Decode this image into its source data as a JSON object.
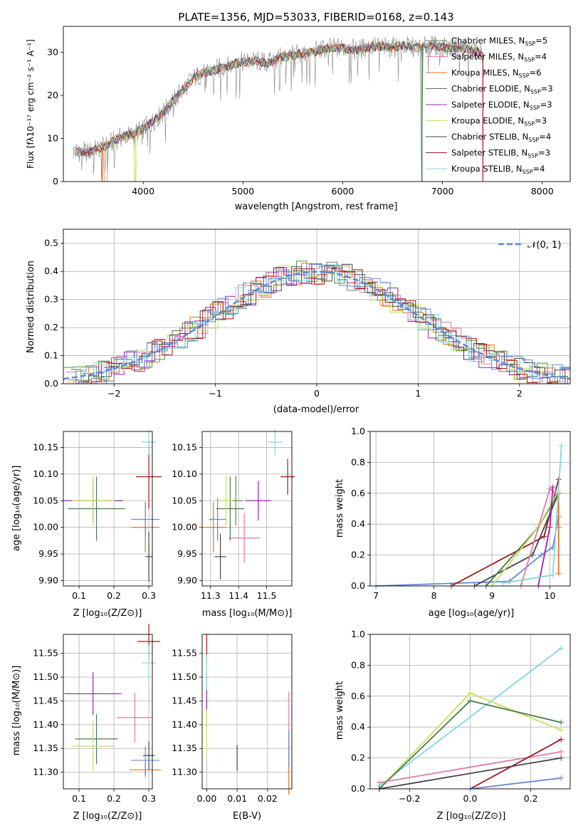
{
  "spectrum": {
    "title": "PLATE=1356, MJD=53033, FIBERID=0168, z=0.143",
    "xlabel": "wavelength [Angstrom, rest frame]",
    "ylabel": "Flux [fλ10⁻¹⁷ erg cm⁻² s⁻¹ A⁻¹]",
    "xticks": [
      "4000",
      "5000",
      "6000",
      "7000",
      "8000"
    ],
    "yticks": [
      "0",
      "10",
      "20",
      "30"
    ],
    "legend": [
      "Chabrier MILES, N_SSP=5",
      "Salpeter MILES, N_SSP=4",
      "Kroupa MILES, N_SSP=6",
      "Chabrier ELODIE, N_SSP=3",
      "Salpeter ELODIE, N_SSP=3",
      "Kroupa ELODIE, N_SSP=3",
      "Chabrier STELIB, N_SSP=4",
      "Salpeter STELIB, N_SSP=3",
      "Kroupa STELIB, N_SSP=4"
    ]
  },
  "residuals": {
    "xlabel": "(data-model)/error",
    "ylabel": "Normed distribution",
    "xticks": [
      "−2",
      "−1",
      "0",
      "1",
      "2"
    ],
    "yticks": [
      "0.0",
      "0.1",
      "0.2",
      "0.3",
      "0.4",
      "0.5"
    ],
    "legend": "𝒩(0, 1)"
  },
  "panels": {
    "age_vs_z": {
      "xlabel": "Z [log₁₀(Z/Z⊙)]",
      "ylabel": "age  [log₁₀(age/yr)]",
      "xticks": [
        "0.1",
        "0.2",
        "0.3"
      ],
      "yticks": [
        "9.90",
        "9.95",
        "10.00",
        "10.05",
        "10.10",
        "10.15"
      ]
    },
    "age_vs_mass": {
      "xlabel": "mass [log₁₀(M/M⊙)]",
      "xticks": [
        "11.3",
        "11.4",
        "11.5"
      ],
      "yticks": [
        "9.90",
        "9.95",
        "10.00",
        "10.05",
        "10.10",
        "10.15"
      ]
    },
    "mw_vs_age": {
      "xlabel": "age  [log₁₀(age/yr)]",
      "ylabel": "mass weight",
      "xticks": [
        "7",
        "8",
        "9",
        "10"
      ],
      "yticks": [
        "0.0",
        "0.2",
        "0.4",
        "0.6",
        "0.8",
        "1.0"
      ]
    },
    "mass_vs_z": {
      "xlabel": "Z [log₁₀(Z/Z⊙)]",
      "ylabel": "mass [log₁₀(M/M⊙)]",
      "xticks": [
        "0.1",
        "0.2",
        "0.3"
      ],
      "yticks": [
        "11.30",
        "11.35",
        "11.40",
        "11.45",
        "11.50",
        "11.55"
      ]
    },
    "mass_vs_ebv": {
      "xlabel": "E(B-V)",
      "xticks": [
        "0.00",
        "0.01",
        "0.02"
      ],
      "yticks": [
        "11.30",
        "11.35",
        "11.40",
        "11.45",
        "11.50",
        "11.55"
      ]
    },
    "mw_vs_z": {
      "xlabel": "Z [log₁₀(Z/Z⊙)]",
      "ylabel": "mass weight",
      "xticks": [
        "−0.2",
        "0.0",
        "0.2"
      ],
      "yticks": [
        "0.0",
        "0.2",
        "0.4",
        "0.6",
        "0.8",
        "1.0"
      ]
    }
  },
  "colors": {
    "Chabrier MILES": "#5a8a5a",
    "Salpeter MILES": "#e07aa8",
    "Kroupa MILES": "#e07020",
    "Chabrier ELODIE": "#4a7a4a",
    "Salpeter ELODIE": "#9a20b0",
    "Kroupa ELODIE": "#c8e060",
    "Chabrier STELIB": "#444444",
    "Salpeter STELIB": "#a01818",
    "Kroupa STELIB": "#80d8e0",
    "Kroupa MILES alt": "#6688dd",
    "gaussian": "#5a8ad8",
    "data": "#888888"
  },
  "chart_data": [
    {
      "type": "line",
      "title": "PLATE=1356, MJD=53033, FIBERID=0168, z=0.143",
      "xlabel": "wavelength [Angstrom, rest frame]",
      "ylabel": "Flux [fλ10⁻¹⁷ erg cm⁻² s⁻¹ A⁻¹]",
      "xlim": [
        3200,
        8280
      ],
      "ylim": [
        0,
        36
      ],
      "x": [
        3300,
        3450,
        3600,
        3750,
        3900,
        4050,
        4200,
        4350,
        4500,
        4650,
        4800,
        4950,
        5100,
        5250,
        5400,
        5550,
        5700,
        5850,
        6000,
        6150,
        6300,
        6450,
        6600,
        6750,
        6900,
        7050,
        7200,
        7350
      ],
      "series": [
        {
          "values": [
            7,
            6.8,
            8,
            10,
            11,
            13,
            16,
            20,
            24,
            25.5,
            26.5,
            27.5,
            28,
            27.5,
            29,
            29.5,
            30,
            31,
            31,
            30.5,
            31.5,
            31,
            31.5,
            31,
            31.5,
            31,
            31,
            30
          ]
        }
      ],
      "legend_position": "upper right"
    },
    {
      "type": "bar",
      "xlabel": "(data-model)/error",
      "ylabel": "Normed distribution",
      "xlim": [
        -2.5,
        2.5
      ],
      "ylim": [
        0,
        0.55
      ],
      "categories": [
        -2.3,
        -2.1,
        -1.9,
        -1.7,
        -1.5,
        -1.3,
        -1.1,
        -0.9,
        -0.7,
        -0.5,
        -0.3,
        -0.1,
        0.1,
        0.3,
        0.5,
        0.7,
        0.9,
        1.1,
        1.3,
        1.5,
        1.7,
        1.9,
        2.1,
        2.3
      ],
      "series": [
        {
          "name": "𝒩(0, 1)",
          "values": [
            0.028,
            0.044,
            0.066,
            0.094,
            0.13,
            0.171,
            0.218,
            0.266,
            0.312,
            0.352,
            0.381,
            0.397,
            0.397,
            0.381,
            0.352,
            0.312,
            0.266,
            0.218,
            0.171,
            0.13,
            0.094,
            0.066,
            0.044,
            0.028
          ]
        }
      ]
    },
    {
      "type": "scatter",
      "xlabel": "Z [log₁₀(Z/Z⊙)]",
      "ylabel": "age  [log₁₀(age/yr)]",
      "xlim": [
        0.055,
        0.31
      ],
      "ylim": [
        9.89,
        10.18
      ],
      "points": [
        {
          "name": "Chabrier MILES",
          "x": 0.15,
          "y": 10.05
        },
        {
          "name": "Salpeter MILES",
          "x": 0.24,
          "y": 9.98
        },
        {
          "name": "Kroupa MILES",
          "x": 0.29,
          "y": 10.0
        },
        {
          "name": "Chabrier ELODIE",
          "x": 0.15,
          "y": 10.035
        },
        {
          "name": "Salpeter ELODIE",
          "x": 0.14,
          "y": 10.05
        },
        {
          "name": "Kroupa ELODIE",
          "x": 0.14,
          "y": 10.05
        },
        {
          "name": "Chabrier STELIB",
          "x": 0.3,
          "y": 9.945
        },
        {
          "name": "Salpeter STELIB",
          "x": 0.3,
          "y": 10.095
        },
        {
          "name": "Kroupa STELIB",
          "x": 0.3,
          "y": 10.16
        },
        {
          "name": "Kroupa MILES alt",
          "x": 0.29,
          "y": 10.015
        }
      ]
    },
    {
      "type": "scatter",
      "xlabel": "mass [log₁₀(M/M⊙)]",
      "xlim": [
        11.27,
        11.59
      ],
      "ylim": [
        9.89,
        10.18
      ],
      "points": [
        {
          "name": "Chabrier MILES",
          "x": 11.39,
          "y": 10.05
        },
        {
          "name": "Salpeter MILES",
          "x": 11.42,
          "y": 9.98
        },
        {
          "name": "Kroupa MILES",
          "x": 11.31,
          "y": 10.0
        },
        {
          "name": "Chabrier ELODIE",
          "x": 11.37,
          "y": 10.035
        },
        {
          "name": "Salpeter ELODIE",
          "x": 11.47,
          "y": 10.05
        },
        {
          "name": "Kroupa ELODIE",
          "x": 11.355,
          "y": 10.05
        },
        {
          "name": "Chabrier STELIB",
          "x": 11.335,
          "y": 9.945
        },
        {
          "name": "Salpeter STELIB",
          "x": 11.575,
          "y": 10.095
        },
        {
          "name": "Kroupa STELIB",
          "x": 11.53,
          "y": 10.16
        },
        {
          "name": "Kroupa MILES alt",
          "x": 11.325,
          "y": 10.015
        }
      ]
    },
    {
      "type": "line",
      "xlabel": "age  [log₁₀(age/yr)]",
      "ylabel": "mass weight",
      "xlim": [
        6.9,
        10.35
      ],
      "ylim": [
        0,
        1.0
      ],
      "series": [
        {
          "name": "Kroupa MILES alt",
          "x": [
            7.0,
            9.3,
            9.85,
            10.05,
            10.15
          ],
          "values": [
            0.0,
            0.03,
            0.2,
            0.25,
            0.45
          ]
        },
        {
          "name": "Salpeter STELIB",
          "x": [
            8.3,
            9.9,
            10.15
          ],
          "values": [
            0.0,
            0.32,
            0.69
          ]
        },
        {
          "name": "Chabrier STELIB",
          "x": [
            8.7,
            9.7,
            10.15
          ],
          "values": [
            0.0,
            0.2,
            0.6
          ]
        },
        {
          "name": "Chabrier ELODIE",
          "x": [
            8.9,
            9.8,
            10.15
          ],
          "values": [
            0.0,
            0.38,
            0.6
          ]
        },
        {
          "name": "Kroupa ELODIE",
          "x": [
            9.0,
            9.8,
            10.15
          ],
          "values": [
            0.0,
            0.38,
            0.62
          ]
        },
        {
          "name": "Salpeter MILES",
          "x": [
            9.5,
            10.0,
            10.1
          ],
          "values": [
            0.0,
            0.63,
            0.6
          ]
        },
        {
          "name": "Salpeter ELODIE",
          "x": [
            9.8,
            10.0,
            10.05
          ],
          "values": [
            0.0,
            0.38,
            0.64
          ]
        },
        {
          "name": "Kroupa MILES",
          "x": [
            10.15,
            10.15,
            10.15
          ],
          "values": [
            0.08,
            0.38,
            0.6
          ]
        },
        {
          "name": "Kroupa STELIB",
          "x": [
            9.2,
            10.05,
            10.2
          ],
          "values": [
            0.02,
            0.07,
            0.91
          ]
        }
      ]
    },
    {
      "type": "scatter",
      "xlabel": "Z [log₁₀(Z/Z⊙)]",
      "ylabel": "mass [log₁₀(M/M⊙)]",
      "xlim": [
        0.055,
        0.31
      ],
      "ylim": [
        11.265,
        11.59
      ],
      "points": [
        {
          "name": "Chabrier MILES",
          "x": 0.15,
          "y": 11.37
        },
        {
          "name": "Salpeter MILES",
          "x": 0.26,
          "y": 11.415
        },
        {
          "name": "Kroupa MILES",
          "x": 0.29,
          "y": 11.305
        },
        {
          "name": "Chabrier ELODIE",
          "x": 0.15,
          "y": 11.37
        },
        {
          "name": "Salpeter ELODIE",
          "x": 0.14,
          "y": 11.465
        },
        {
          "name": "Kroupa ELODIE",
          "x": 0.14,
          "y": 11.355
        },
        {
          "name": "Chabrier STELIB",
          "x": 0.3,
          "y": 11.335
        },
        {
          "name": "Salpeter STELIB",
          "x": 0.3,
          "y": 11.575
        },
        {
          "name": "Kroupa STELIB",
          "x": 0.3,
          "y": 11.53
        },
        {
          "name": "Kroupa MILES alt",
          "x": 0.29,
          "y": 11.325
        }
      ]
    },
    {
      "type": "scatter",
      "xlabel": "E(B-V)",
      "xlim": [
        -0.0015,
        0.028
      ],
      "ylim": [
        11.265,
        11.59
      ],
      "points": [
        {
          "name": "Chabrier MILES",
          "x": 0.0,
          "y": 11.42
        },
        {
          "name": "Salpeter MILES",
          "x": 0.027,
          "y": 11.41
        },
        {
          "name": "Kroupa MILES",
          "x": 0.027,
          "y": 11.305
        },
        {
          "name": "Salpeter ELODIE",
          "x": 0.0,
          "y": 11.47
        },
        {
          "name": "Kroupa ELODIE",
          "x": 0.0,
          "y": 11.38
        },
        {
          "name": "Chabrier STELIB",
          "x": 0.01,
          "y": 11.33
        },
        {
          "name": "Salpeter STELIB",
          "x": 0.0,
          "y": 11.56
        },
        {
          "name": "Kroupa STELIB",
          "x": 0.0,
          "y": 11.51
        },
        {
          "name": "Kroupa MILES alt",
          "x": 0.027,
          "y": 11.35
        }
      ]
    },
    {
      "type": "line",
      "xlabel": "Z [log₁₀(Z/Z⊙)]",
      "ylabel": "mass weight",
      "xlim": [
        -0.33,
        0.33
      ],
      "ylim": [
        0,
        1.0
      ],
      "series": [
        {
          "name": "Kroupa STELIB",
          "x": [
            -0.3,
            0.3
          ],
          "values": [
            0.02,
            0.91
          ]
        },
        {
          "name": "Kroupa ELODIE",
          "x": [
            -0.3,
            0.0,
            0.3
          ],
          "values": [
            0.0,
            0.62,
            0.38
          ]
        },
        {
          "name": "Chabrier ELODIE",
          "x": [
            -0.3,
            0.0,
            0.3
          ],
          "values": [
            0.0,
            0.57,
            0.43
          ]
        },
        {
          "name": "Salpeter MILES",
          "x": [
            -0.3,
            0.3
          ],
          "values": [
            0.04,
            0.24
          ]
        },
        {
          "name": "Chabrier STELIB",
          "x": [
            -0.3,
            0.3
          ],
          "values": [
            0.0,
            0.2
          ]
        },
        {
          "name": "Salpeter STELIB",
          "x": [
            0.0,
            0.3
          ],
          "values": [
            0.0,
            0.32
          ]
        },
        {
          "name": "Kroupa MILES alt",
          "x": [
            0.0,
            0.3
          ],
          "values": [
            0.0,
            0.07
          ]
        }
      ]
    }
  ]
}
